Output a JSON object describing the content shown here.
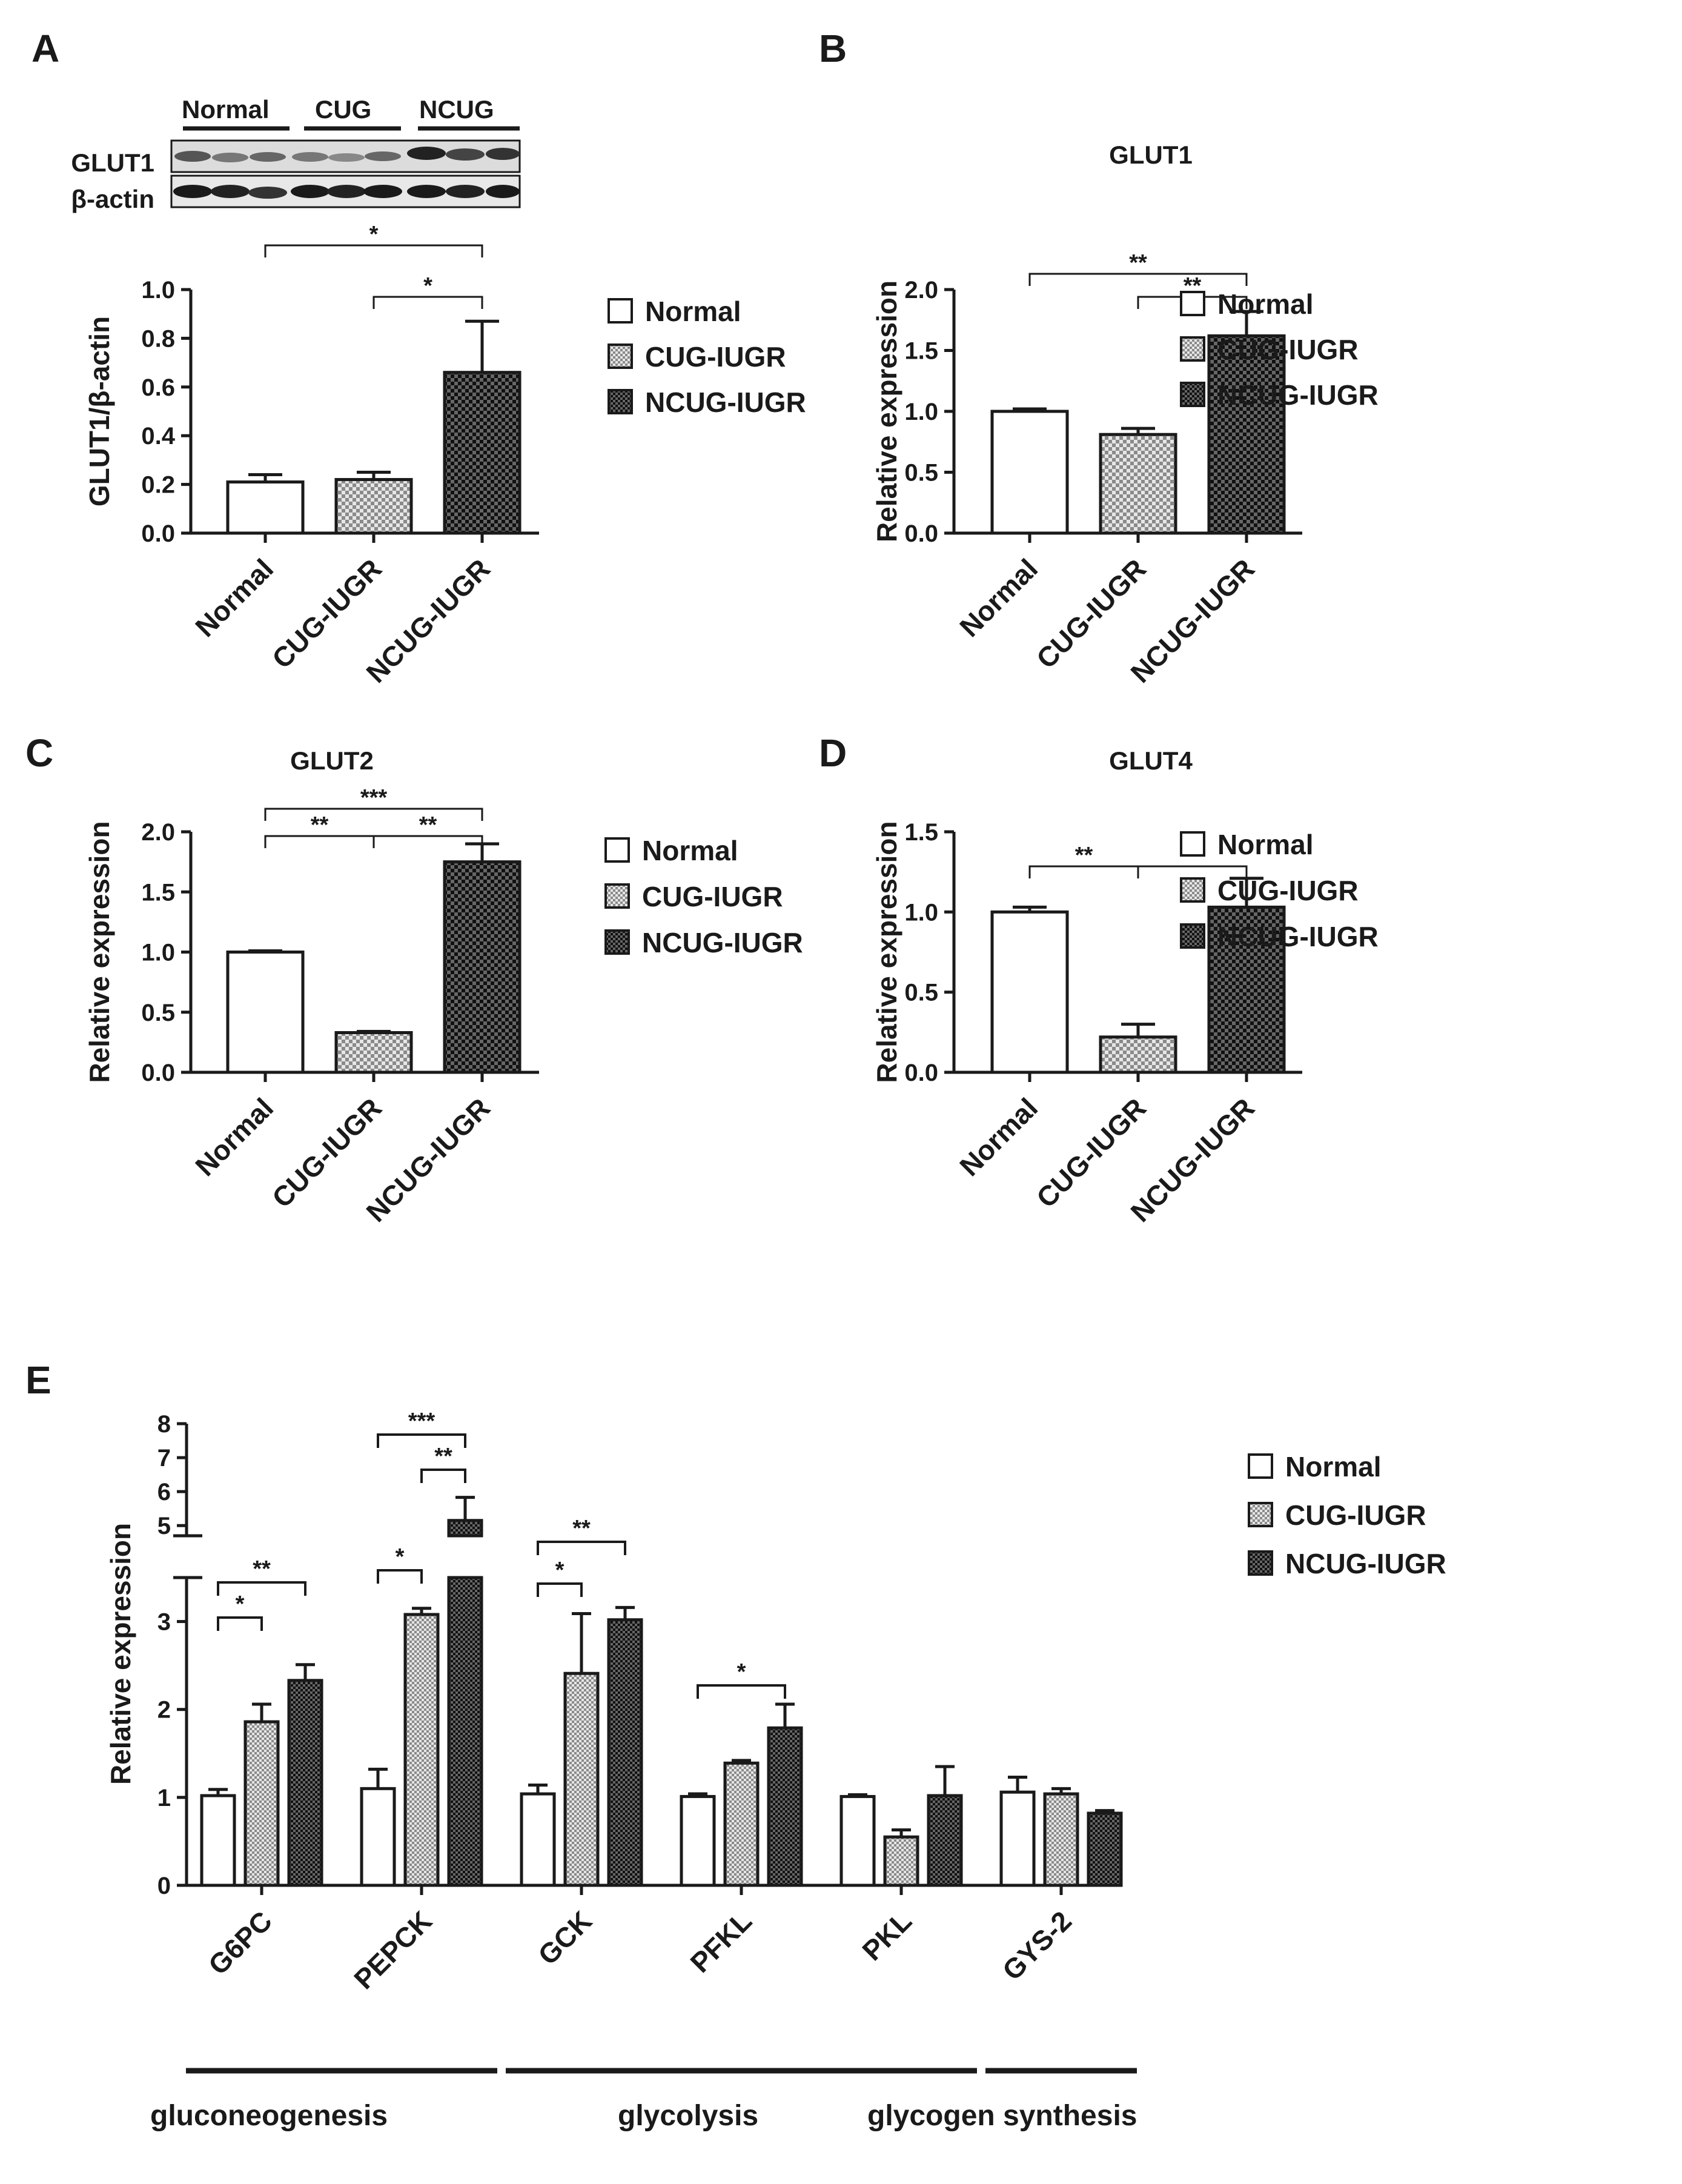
{
  "colors": {
    "ink": "#1a1a1a",
    "normal_fill": "#ffffff",
    "cug_fill": "#c4c4c4",
    "ncug_fill": "#2c2c2c"
  },
  "chart_data": [
    {
      "panel": "A",
      "type": "bar",
      "title": "",
      "blot": {
        "groups": [
          "Normal",
          "CUG",
          "NCUG"
        ],
        "rows": [
          "GLUT1",
          "β-actin"
        ]
      },
      "ylabel": "GLUT1/β-actin",
      "ylim": [
        0,
        1.0
      ],
      "yticks": [
        "0.0",
        "0.2",
        "0.4",
        "0.6",
        "0.8",
        "1.0"
      ],
      "categories": [
        "Normal",
        "CUG-IUGR",
        "NCUG-IUGR"
      ],
      "values": [
        0.21,
        0.22,
        0.66
      ],
      "errors": [
        0.03,
        0.03,
        0.21
      ],
      "legend": [
        "Normal",
        "CUG-IUGR",
        "NCUG-IUGR"
      ],
      "significance": [
        {
          "from": 0,
          "to": 2,
          "label": "*"
        },
        {
          "from": 1,
          "to": 2,
          "label": "*"
        }
      ]
    },
    {
      "panel": "B",
      "type": "bar",
      "title": "GLUT1",
      "ylabel": "Relative expression",
      "ylim": [
        0,
        2.0
      ],
      "yticks": [
        "0.0",
        "0.5",
        "1.0",
        "1.5",
        "2.0"
      ],
      "categories": [
        "Normal",
        "CUG-IUGR",
        "NCUG-IUGR"
      ],
      "values": [
        1.0,
        0.81,
        1.62
      ],
      "errors": [
        0.02,
        0.05,
        0.2
      ],
      "legend": [
        "Normal",
        "CUG-IUGR",
        "NCUG-IUGR"
      ],
      "significance": [
        {
          "from": 0,
          "to": 2,
          "label": "**"
        },
        {
          "from": 1,
          "to": 2,
          "label": "**"
        }
      ]
    },
    {
      "panel": "C",
      "type": "bar",
      "title": "GLUT2",
      "ylabel": "Relative expression",
      "ylim": [
        0,
        2.0
      ],
      "yticks": [
        "0.0",
        "0.5",
        "1.0",
        "1.5",
        "2.0"
      ],
      "categories": [
        "Normal",
        "CUG-IUGR",
        "NCUG-IUGR"
      ],
      "values": [
        1.0,
        0.33,
        1.75
      ],
      "errors": [
        0.01,
        0.01,
        0.15
      ],
      "legend": [
        "Normal",
        "CUG-IUGR",
        "NCUG-IUGR"
      ],
      "significance": [
        {
          "from": 0,
          "to": 2,
          "label": "***"
        },
        {
          "from": 0,
          "to": 1,
          "label": "**"
        },
        {
          "from": 1,
          "to": 2,
          "label": "**"
        }
      ]
    },
    {
      "panel": "D",
      "type": "bar",
      "title": "GLUT4",
      "ylabel": "Relative expression",
      "ylim": [
        0,
        1.5
      ],
      "yticks": [
        "0.0",
        "0.5",
        "1.0",
        "1.5"
      ],
      "categories": [
        "Normal",
        "CUG-IUGR",
        "NCUG-IUGR"
      ],
      "values": [
        1.0,
        0.22,
        1.03
      ],
      "errors": [
        0.03,
        0.08,
        0.18
      ],
      "legend": [
        "Normal",
        "CUG-IUGR",
        "NCUG-IUGR"
      ],
      "significance": [
        {
          "from": 0,
          "to": 1,
          "label": "**"
        },
        {
          "from": 1,
          "to": 2,
          "label": "**"
        }
      ]
    },
    {
      "panel": "E",
      "type": "bar",
      "title": "",
      "ylabel": "Relative expression",
      "ylim": [
        0,
        8
      ],
      "axis_break": [
        3.5,
        4.7
      ],
      "yticks": [
        "0",
        "1",
        "2",
        "3",
        "5",
        "6",
        "7",
        "8"
      ],
      "categories": [
        "G6PC",
        "PEPCK",
        "GCK",
        "PFKL",
        "PKL",
        "GYS-2"
      ],
      "series": [
        {
          "name": "Normal",
          "values": [
            1.02,
            1.1,
            1.04,
            1.01,
            1.01,
            1.06
          ],
          "errors": [
            0.07,
            0.22,
            0.1,
            0.03,
            0.02,
            0.17
          ]
        },
        {
          "name": "CUG-IUGR",
          "values": [
            1.86,
            3.08,
            2.41,
            1.39,
            0.55,
            1.04
          ],
          "errors": [
            0.2,
            0.07,
            0.68,
            0.03,
            0.08,
            0.06
          ]
        },
        {
          "name": "NCUG-IUGR",
          "values": [
            2.33,
            5.15,
            3.02,
            1.79,
            1.02,
            0.82
          ],
          "errors": [
            0.18,
            0.68,
            0.14,
            0.27,
            0.33,
            0.03
          ]
        }
      ],
      "legend": [
        "Normal",
        "CUG-IUGR",
        "NCUG-IUGR"
      ],
      "significance": [
        {
          "group": 0,
          "from": 0,
          "to": 1,
          "label": "*"
        },
        {
          "group": 0,
          "from": 0,
          "to": 2,
          "label": "**"
        },
        {
          "group": 1,
          "from": 0,
          "to": 1,
          "label": "*"
        },
        {
          "group": 1,
          "from": 1,
          "to": 2,
          "label": "**"
        },
        {
          "group": 1,
          "from": 0,
          "to": 2,
          "label": "***"
        },
        {
          "group": 2,
          "from": 0,
          "to": 1,
          "label": "*"
        },
        {
          "group": 2,
          "from": 0,
          "to": 2,
          "label": "**"
        },
        {
          "group": 3,
          "from": 0,
          "to": 2,
          "label": "*"
        }
      ],
      "pathways": [
        {
          "label": "gluconeogenesis",
          "groups": [
            0,
            1
          ]
        },
        {
          "label": "glycolysis",
          "groups": [
            2,
            4
          ]
        },
        {
          "label": "glycogen synthesis",
          "groups": [
            5,
            5
          ]
        }
      ]
    }
  ]
}
